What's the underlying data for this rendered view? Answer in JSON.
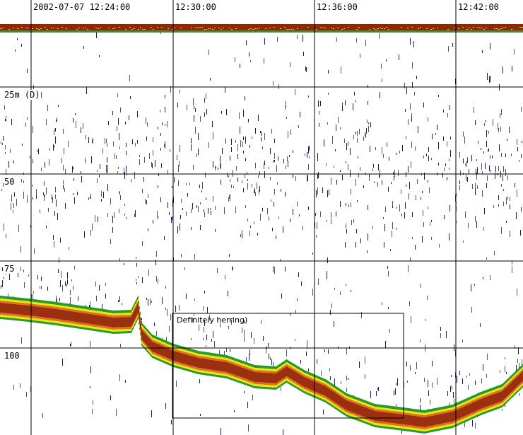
{
  "time_axis": {
    "start_label": "2002-07-07 12:24:00",
    "tick_labels": [
      "12:30:00",
      "12:36:00",
      "12:42:00"
    ]
  },
  "depth_axis": {
    "labels": [
      "25m (D)",
      "50",
      "75",
      "100"
    ]
  },
  "annotation": {
    "text": "Definitely herring)"
  },
  "colors": {
    "background": "#ffffff",
    "grid": "#000000",
    "surface_band": "#8b2a0a",
    "weak_echo": "#555555",
    "medium_echo": "#0a1aa0",
    "strong_echo": "#2a9a2a",
    "stronger_echo": "#e8e800",
    "very_strong_echo": "#e07020",
    "bottom_echo": "#9a3010"
  }
}
